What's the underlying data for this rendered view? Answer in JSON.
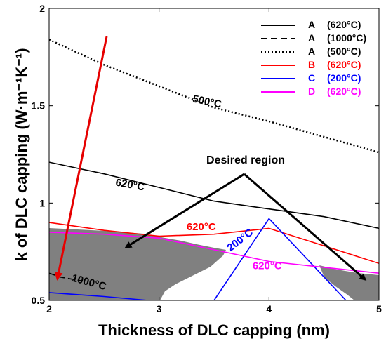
{
  "chart_data": {
    "type": "line",
    "xlabel": "Thickness of DLC capping (nm)",
    "ylabel": "k of DLC capping (W·m⁻¹K⁻¹)",
    "xlim": [
      2,
      5
    ],
    "ylim": [
      0.5,
      2
    ],
    "xticks": [
      2,
      3,
      4,
      5
    ],
    "yticks": [
      0.5,
      1,
      1.5,
      2
    ],
    "xtick_labels": [
      "2",
      "3",
      "4",
      "5"
    ],
    "ytick_labels": [
      "0.5",
      "1",
      "1.5",
      "2"
    ],
    "legend_position": "top-right",
    "series": [
      {
        "name": "A (620°C)",
        "letter": "A",
        "temp": "(620°C)",
        "color": "#000000",
        "dash": "solid",
        "x": [
          2,
          2.5,
          3,
          3.5,
          4,
          4.5,
          5
        ],
        "y": [
          1.21,
          1.15,
          1.08,
          1.01,
          0.97,
          0.93,
          0.87
        ]
      },
      {
        "name": "A (1000°C)",
        "letter": "A",
        "temp": "(1000°C)",
        "color": "#000000",
        "dash": "dashed",
        "x": [
          2,
          2.1,
          2.3
        ],
        "y": [
          0.64,
          0.62,
          0.6
        ]
      },
      {
        "name": "A (500°C)",
        "letter": "A",
        "temp": "(500°C)",
        "color": "#000000",
        "dash": "dotted",
        "x": [
          2,
          2.5,
          3,
          3.5,
          4,
          4.5,
          5
        ],
        "y": [
          1.84,
          1.71,
          1.6,
          1.49,
          1.42,
          1.34,
          1.26
        ]
      },
      {
        "name": "B (620°C)",
        "letter": "B",
        "temp": "(620°C)",
        "color": "#ff0000",
        "dash": "solid",
        "x": [
          2,
          2.5,
          3,
          3.5,
          4,
          4.5,
          5
        ],
        "y": [
          0.9,
          0.86,
          0.83,
          0.84,
          0.87,
          0.78,
          0.69
        ]
      },
      {
        "name": "C (200°C)",
        "letter": "C",
        "temp": "(200°C)",
        "color": "#0000ff",
        "dash": "solid",
        "x": [
          2,
          2.5,
          2.9,
          3.5,
          4.0,
          4.7,
          4.8
        ],
        "y": [
          0.54,
          0.52,
          0.5,
          0.5,
          0.92,
          0.5,
          0.5
        ]
      },
      {
        "name": "D (620°C)",
        "letter": "D",
        "temp": "(620°C)",
        "color": "#ff00ff",
        "dash": "solid",
        "x": [
          2,
          2.5,
          3,
          3.5,
          4,
          4.5,
          5
        ],
        "y": [
          0.85,
          0.84,
          0.82,
          0.76,
          0.7,
          0.67,
          0.64
        ]
      }
    ],
    "curve_labels": [
      {
        "text": "500°C",
        "x": 3.3,
        "y": 1.52,
        "color": "#000000",
        "rotate": 12
      },
      {
        "text": "620°C",
        "x": 2.6,
        "y": 1.09,
        "color": "#000000",
        "rotate": 10
      },
      {
        "text": "620°C",
        "x": 3.25,
        "y": 0.86,
        "color": "#ff0000",
        "rotate": 0
      },
      {
        "text": "200°C",
        "x": 3.65,
        "y": 0.75,
        "color": "#0000ff",
        "rotate": -38
      },
      {
        "text": "620°C",
        "x": 3.85,
        "y": 0.66,
        "color": "#ff00ff",
        "rotate": 0
      },
      {
        "text": "1000°C",
        "x": 2.2,
        "y": 0.6,
        "color": "#000000",
        "rotate": 15
      }
    ],
    "annotations": [
      {
        "text": "Desired region"
      }
    ]
  }
}
